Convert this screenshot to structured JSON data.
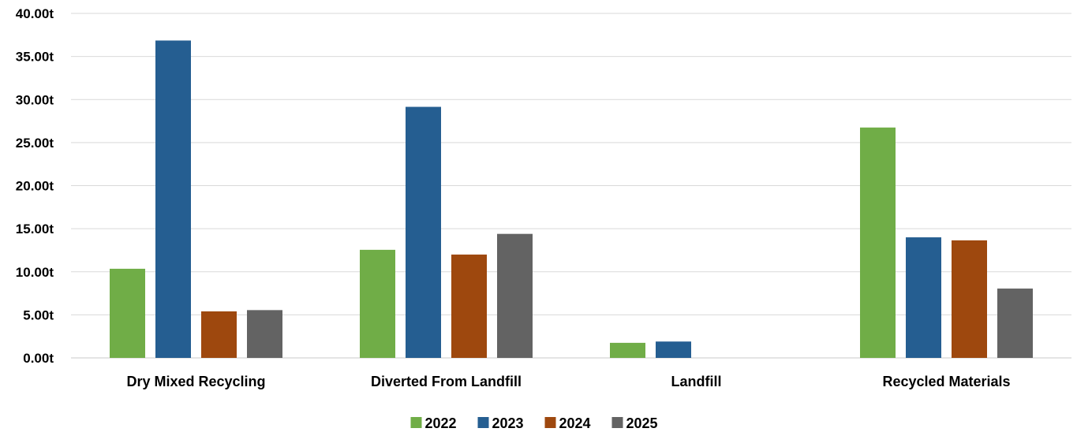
{
  "chart_data": {
    "type": "bar",
    "categories": [
      "Dry Mixed Recycling",
      "Diverted From Landfill",
      "Landfill",
      "Recycled Materials"
    ],
    "series": [
      {
        "name": "2022",
        "color": "#70ad47",
        "values": [
          10.35,
          12.55,
          1.75,
          26.75
        ]
      },
      {
        "name": "2023",
        "color": "#255e91",
        "values": [
          36.85,
          29.15,
          1.9,
          14.0
        ]
      },
      {
        "name": "2024",
        "color": "#9e480e",
        "values": [
          5.4,
          12.0,
          0,
          13.65
        ]
      },
      {
        "name": "2025",
        "color": "#636363",
        "values": [
          5.55,
          14.4,
          0,
          8.05
        ]
      }
    ],
    "ylim": [
      0,
      40
    ],
    "yticks": [
      "0.00t",
      "5.00t",
      "10.00t",
      "15.00t",
      "20.00t",
      "25.00t",
      "30.00t",
      "35.00t",
      "40.00t"
    ],
    "grid": true,
    "legend_position": "bottom-center"
  }
}
